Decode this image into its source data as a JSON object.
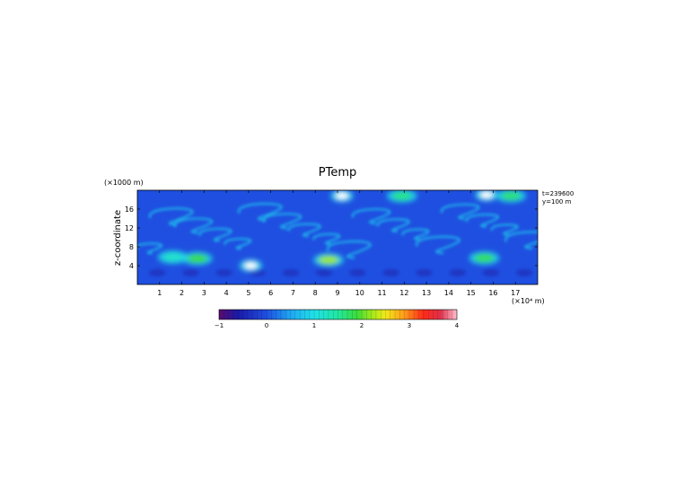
{
  "chart_data": {
    "type": "heatmap",
    "title": "PTemp",
    "xlabel": "",
    "ylabel": "z-coordinate",
    "x_unit": "(×10⁴ m)",
    "y_unit": "(×1000 m)",
    "x_ticks": [
      1,
      2,
      3,
      4,
      5,
      6,
      7,
      8,
      9,
      10,
      11,
      12,
      13,
      14,
      15,
      16,
      17
    ],
    "y_ticks": [
      4,
      8,
      12,
      16
    ],
    "xlim": [
      0,
      18
    ],
    "ylim": [
      0,
      20
    ],
    "annotations": [
      "t=239600",
      "y=100 m"
    ],
    "colorbar": {
      "ticks": [
        -1,
        0,
        1,
        2,
        3,
        4
      ],
      "range": [
        -1,
        4
      ]
    },
    "field_description_values": {
      "background": 0.0,
      "warm_plumes": [
        {
          "x": 2.7,
          "z": 5.5,
          "value": 1.9
        },
        {
          "x": 8.6,
          "z": 5.2,
          "value": 2.2
        },
        {
          "x": 15.6,
          "z": 5.6,
          "value": 1.8
        },
        {
          "x": 11.9,
          "z": 18.8,
          "value": 1.6
        },
        {
          "x": 16.8,
          "z": 18.8,
          "value": 1.7
        },
        {
          "x": 1.6,
          "z": 5.8,
          "value": 1.2
        },
        {
          "x": 5.1,
          "z": 4.0,
          "value": 4.0
        },
        {
          "x": 9.2,
          "z": 18.8,
          "value": 4.0
        },
        {
          "x": 15.7,
          "z": 19.0,
          "value": 4.0
        }
      ]
    }
  }
}
